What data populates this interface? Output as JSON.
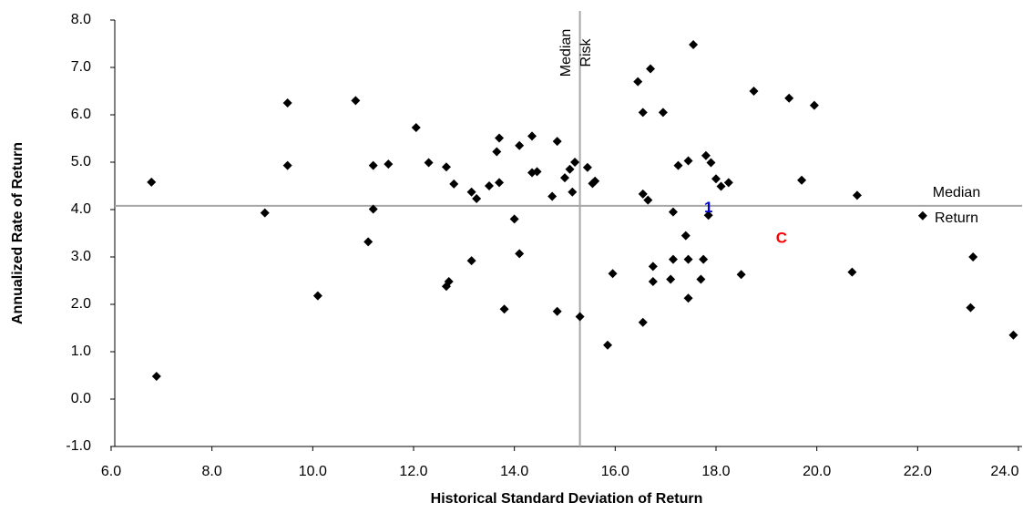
{
  "chart_data": {
    "type": "scatter",
    "x_label": "Historical Standard Deviation of Return",
    "y_label": "Annualized Rate of Return",
    "xlim": [
      6,
      24
    ],
    "ylim": [
      -1,
      8
    ],
    "xticks": [
      {
        "value": 6,
        "label": "6.0"
      },
      {
        "value": 8,
        "label": "8.0"
      },
      {
        "value": 10,
        "label": "10.0"
      },
      {
        "value": 12,
        "label": "12.0"
      },
      {
        "value": 14,
        "label": "14.0"
      },
      {
        "value": 16,
        "label": "16.0"
      },
      {
        "value": 18,
        "label": "18.0"
      },
      {
        "value": 20,
        "label": "20.0"
      },
      {
        "value": 22,
        "label": "22.0"
      },
      {
        "value": 24,
        "label": "24.0"
      }
    ],
    "yticks": [
      {
        "value": -1,
        "label": "-1.0"
      },
      {
        "value": 0,
        "label": "0.0"
      },
      {
        "value": 1,
        "label": "1.0"
      },
      {
        "value": 2,
        "label": "2.0"
      },
      {
        "value": 3,
        "label": "3.0"
      },
      {
        "value": 4,
        "label": "4.0"
      },
      {
        "value": 5,
        "label": "5.0"
      },
      {
        "value": 6,
        "label": "6.0"
      },
      {
        "value": 7,
        "label": "7.0"
      },
      {
        "value": 8,
        "label": "8.0"
      }
    ],
    "color": "#000000",
    "line_color": "#a6a6a6",
    "x": [
      6.8,
      6.9,
      9.05,
      9.5,
      9.5,
      10.1,
      10.85,
      11.1,
      11.2,
      11.2,
      11.5,
      12.05,
      12.3,
      12.65,
      12.8,
      12.65,
      12.7,
      13.15,
      13.15,
      13.25,
      13.5,
      13.65,
      13.7,
      13.7,
      13.8,
      14.0,
      14.1,
      14.1,
      14.35,
      14.35,
      14.45,
      14.75,
      14.85,
      14.85,
      15.0,
      15.1,
      15.15,
      15.2,
      15.3,
      15.45,
      15.55,
      15.6,
      15.85,
      15.95,
      16.45,
      16.55,
      16.55,
      16.55,
      16.65,
      16.7,
      16.75,
      16.75,
      16.95,
      17.1,
      17.15,
      17.15,
      17.25,
      17.4,
      17.45,
      17.45,
      17.45,
      17.55,
      17.7,
      17.75,
      17.8,
      17.85,
      17.9,
      18.0,
      18.1,
      18.25,
      18.5,
      18.75,
      19.45,
      19.7,
      19.95,
      20.7,
      20.8,
      22.1,
      23.1,
      23.05,
      23.9
    ],
    "values": [
      4.58,
      0.48,
      3.93,
      6.25,
      4.93,
      2.18,
      6.3,
      3.32,
      4.93,
      4.01,
      4.96,
      5.73,
      4.99,
      4.9,
      4.54,
      2.38,
      2.48,
      2.92,
      4.37,
      4.23,
      4.5,
      5.22,
      5.51,
      4.57,
      1.9,
      3.8,
      3.07,
      5.35,
      5.55,
      4.78,
      4.8,
      4.28,
      5.44,
      1.85,
      4.67,
      4.85,
      4.37,
      5.0,
      1.74,
      4.89,
      4.55,
      4.6,
      1.14,
      2.65,
      6.7,
      6.05,
      4.33,
      1.62,
      4.2,
      6.97,
      2.8,
      2.48,
      6.05,
      2.53,
      3.95,
      2.95,
      4.93,
      3.45,
      5.03,
      2.95,
      2.13,
      7.48,
      2.53,
      2.95,
      5.14,
      3.88,
      4.99,
      4.65,
      4.49,
      4.57,
      2.63,
      6.5,
      6.35,
      4.62,
      6.2,
      2.68,
      4.3,
      3.87,
      3.0,
      1.93,
      1.35
    ],
    "median_x": 15.3,
    "median_y": 4.08,
    "median_x_label": [
      "Median",
      "Risk"
    ],
    "median_y_label": [
      "Median",
      "Return"
    ],
    "point_labels": [
      {
        "text": "1",
        "x": 17.85,
        "y": 4.03,
        "color": "#0000cc"
      },
      {
        "text": "C",
        "x": 19.3,
        "y": 3.38,
        "color": "#ff0000"
      }
    ]
  }
}
